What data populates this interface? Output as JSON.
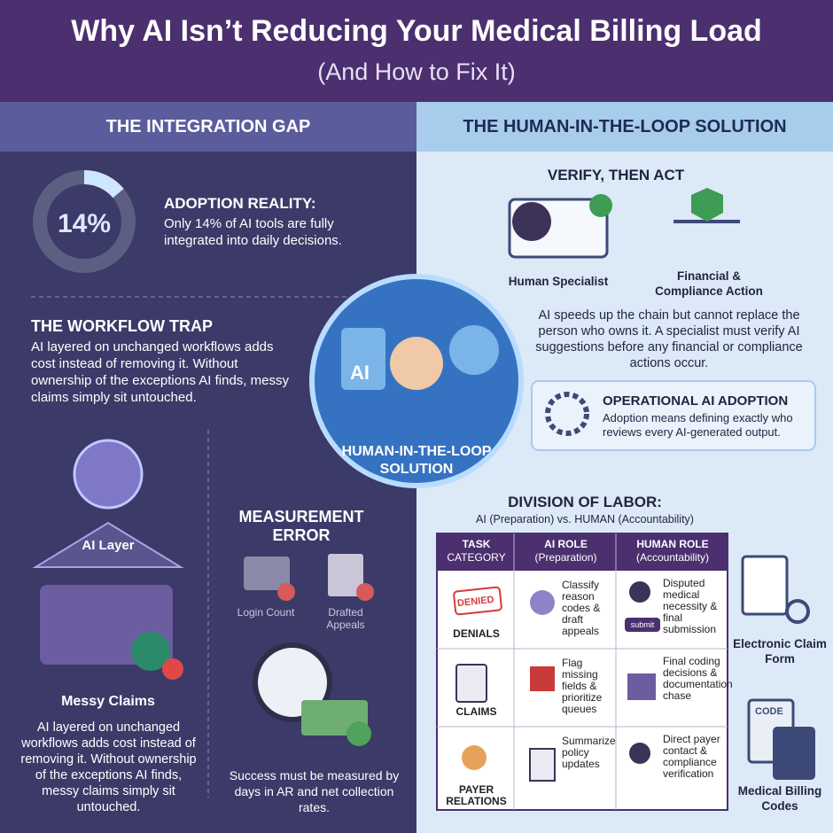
{
  "header": {
    "title": "Why AI Isn’t Reducing Your Medical Billing Load",
    "subtitle": "(And How to Fix It)"
  },
  "left": {
    "heading": "THE INTEGRATION GAP",
    "adoption": {
      "value": 14,
      "label": "14%",
      "title": "ADOPTION REALITY:",
      "text": "Only 14% of AI tools are fully integrated into daily decisions."
    },
    "workflow": {
      "title": "THE WORKFLOW TRAP",
      "text": "AI layered on unchanged workflows adds cost instead of removing it. Without ownership of the exceptions AI finds, messy claims simply sit untouched."
    },
    "ai_layer": "AI Layer",
    "messy_title": "Messy Claims",
    "messy_text": "AI layered on unchanged workflows adds cost instead of removing it. Without ownership of the exceptions AI finds, messy claims simply sit untouched.",
    "measurement": {
      "title": "MEASUREMENT ERROR",
      "items": [
        "Login Count",
        "Drafted Appeals"
      ],
      "text": "Success must be measured by days in AR and net collection rates."
    }
  },
  "center": {
    "icon_label": "AI",
    "badge": "HUMAN-IN-THE-LOOP SOLUTION"
  },
  "right": {
    "heading": "THE HUMAN-IN-THE-LOOP SOLUTION",
    "verify": {
      "title": "VERIFY, THEN ACT",
      "roles": [
        "Human Specialist",
        "Financial & Compliance Action"
      ],
      "text": "AI speeds up the chain but cannot replace the person who owns it. A specialist must verify AI suggestions before any financial or compliance actions occur."
    },
    "operational": {
      "title": "OPERATIONAL AI ADOPTION",
      "text": "Adoption means defining exactly who reviews every AI-generated output."
    },
    "division": {
      "title": "DIVISION OF LABOR:",
      "subtitle": "AI (Preparation) vs. HUMAN (Accountability)"
    },
    "table": {
      "headers": [
        [
          "TASK",
          "CATEGORY"
        ],
        [
          "AI ROLE",
          "(Preparation)"
        ],
        [
          "HUMAN ROLE",
          "(Accountability)"
        ]
      ],
      "rows": [
        [
          "DENIALS",
          "Classify reason codes & draft appeals",
          "Disputed medical necessity & final submission"
        ],
        [
          "CLAIMS",
          "Flag missing fields & prioritize queues",
          "Final coding decisions & documentation chase"
        ],
        [
          "PAYER RELATIONS",
          "Summarize policy updates",
          "Direct payer contact & compliance verification"
        ]
      ],
      "stamp": "DENIED",
      "submit": "submit"
    },
    "side": {
      "claim_form": "Electronic Claim Form",
      "code_icon": "CODE",
      "billing_codes": "Medical Billing Codes"
    }
  }
}
